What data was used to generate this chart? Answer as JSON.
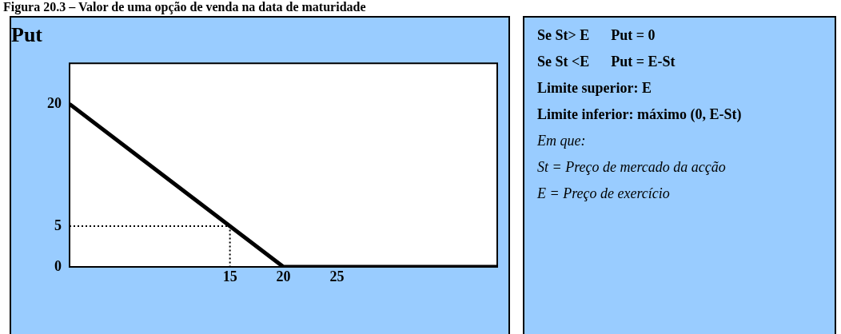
{
  "chart_data": {
    "type": "line",
    "title": "Put",
    "xlim": [
      0,
      40
    ],
    "xticks": [
      15,
      20,
      25
    ],
    "ylim": [
      0,
      25
    ],
    "yticks": [
      0,
      5,
      20
    ],
    "grid": false,
    "legend": false,
    "marker": "none",
    "series": [
      {
        "color": "#000000",
        "x": [
          0,
          20,
          40
        ],
        "values": [
          20,
          0,
          0
        ],
        "line_style": "solid"
      },
      {
        "color": "#000000",
        "x": [
          0,
          15,
          15
        ],
        "values": [
          5,
          5,
          0
        ],
        "line_style": "dotted"
      }
    ],
    "annotations": [
      "Figura 20.3 – Valor de uma opção de venda na data de maturidade",
      "Se St> E      Put = 0",
      "Se St <E      Put = E-St",
      "Limite superior: E",
      "Limite inferior: máximo (0, E-St)",
      "Em que:",
      "St = Preço de mercado da acção",
      "E = Preço de exercício"
    ]
  }
}
